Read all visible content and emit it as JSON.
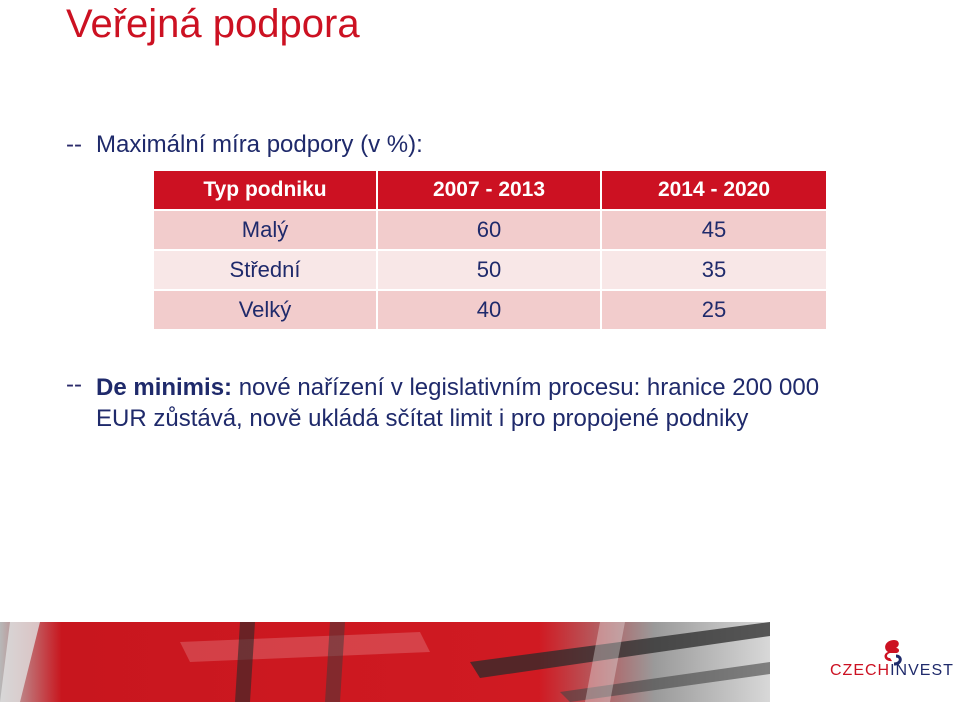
{
  "title": "Veřejná podpora",
  "bullet_marker": "--",
  "bullet1": "Maximální míra podpory (v %):",
  "table": {
    "headers": [
      "Typ podniku",
      "2007 - 2013",
      "2014 - 2020"
    ],
    "rows": [
      [
        "Malý",
        "60",
        "45"
      ],
      [
        "Střední",
        "50",
        "35"
      ],
      [
        "Velký",
        "40",
        "25"
      ]
    ]
  },
  "bullet2": {
    "bold": "De minimis:",
    "line1_rest": " nové nařízení v legislativním procesu: hranice 200 000",
    "line2": "EUR zůstává, nově ukládá sčítat limit i pro propojené podniky"
  },
  "logo": {
    "part1": "CZECH",
    "part2": "INVEST"
  },
  "colors": {
    "accent": "#cc1122",
    "text": "#1f2a6b",
    "row_dark": "#f2cccc",
    "row_light": "#f8e7e7"
  }
}
